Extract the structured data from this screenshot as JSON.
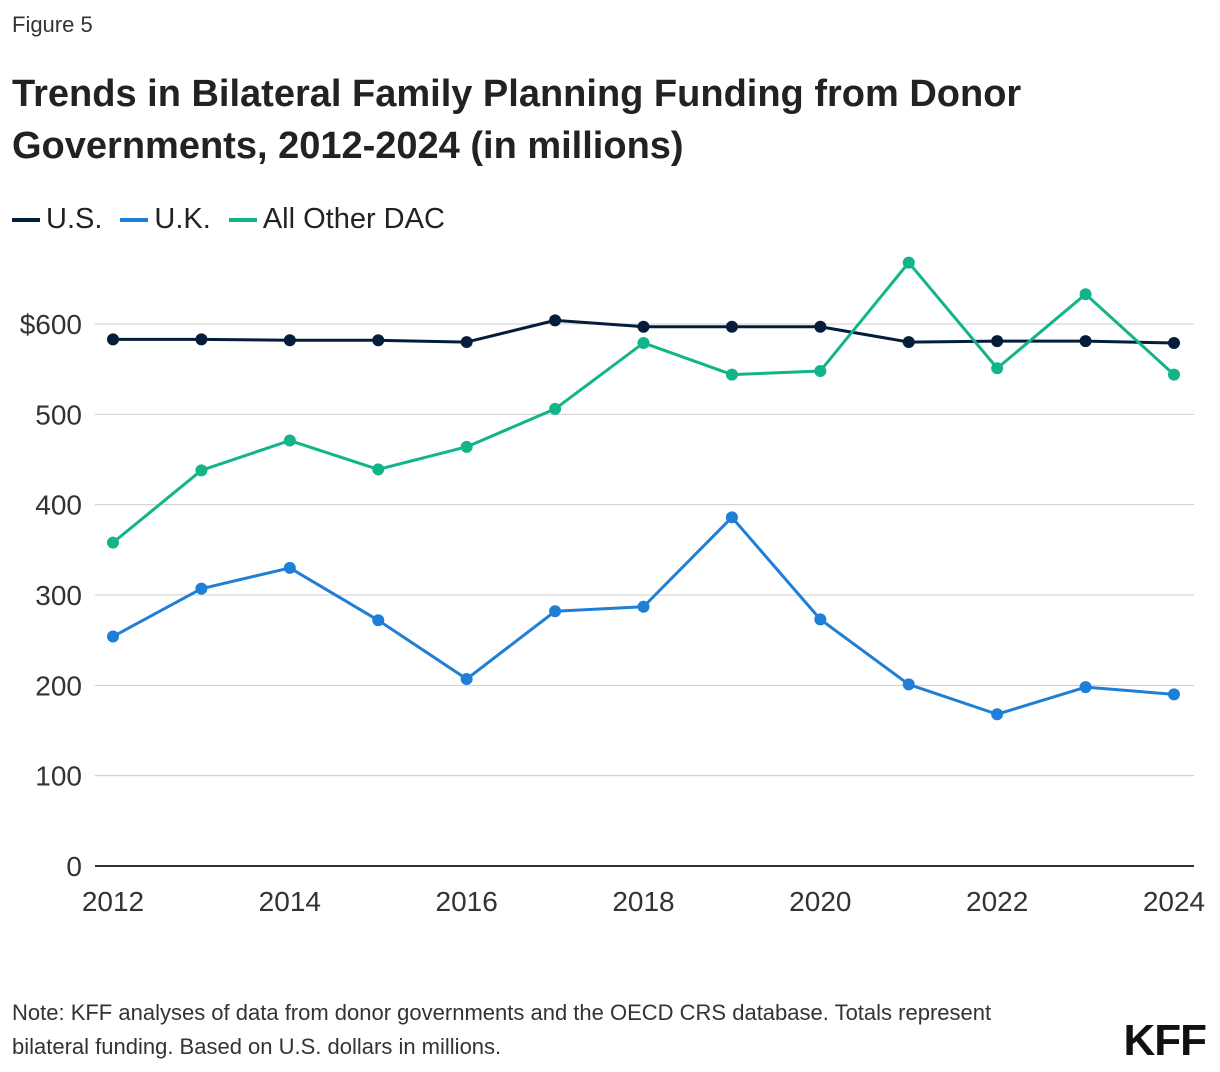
{
  "figure_label": "Figure 5",
  "title": "Trends in Bilateral Family Planning Funding from Donor Governments, 2012-2024 (in millions)",
  "note": "Note: KFF analyses of data from donor governments and the OECD CRS database. Totals represent bilateral funding. Based on U.S. dollars in millions.",
  "logo": "KFF",
  "chart_data": {
    "type": "line",
    "x": [
      2012,
      2013,
      2014,
      2015,
      2016,
      2017,
      2018,
      2019,
      2020,
      2021,
      2022,
      2023,
      2024
    ],
    "xticks": [
      "2012",
      "2014",
      "2016",
      "2018",
      "2020",
      "2022",
      "2024"
    ],
    "yticks": [
      "0",
      "100",
      "200",
      "300",
      "400",
      "500",
      "$600"
    ],
    "ylim": [
      0,
      600
    ],
    "grid": true,
    "legend": "top-left",
    "series": [
      {
        "name": "U.S.",
        "color": "#041e3a",
        "values": [
          583,
          583,
          582,
          582,
          580,
          604,
          597,
          597,
          597,
          580,
          581,
          581,
          579
        ]
      },
      {
        "name": "U.K.",
        "color": "#1f7fd6",
        "values": [
          254,
          307,
          330,
          272,
          207,
          282,
          287,
          386,
          273,
          201,
          168,
          198,
          190
        ]
      },
      {
        "name": "All Other DAC",
        "color": "#12b48a",
        "values": [
          358,
          438,
          471,
          439,
          464,
          506,
          579,
          544,
          548,
          668,
          551,
          633,
          544
        ]
      }
    ]
  }
}
